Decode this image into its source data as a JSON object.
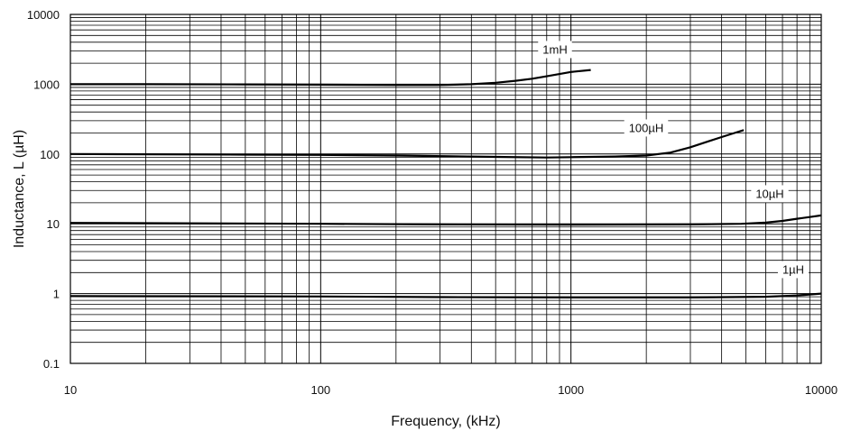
{
  "chart_data": {
    "type": "line",
    "xlabel": "Frequency, (kHz)",
    "ylabel": "Inductance, L (µH)",
    "xscale": "log",
    "yscale": "log",
    "xlim": [
      10,
      10000
    ],
    "ylim": [
      0.1,
      10000
    ],
    "grid": true,
    "x_ticks": [
      "10",
      "100",
      "1000",
      "10000"
    ],
    "y_ticks": [
      "0.1",
      "1",
      "10",
      "100",
      "1000",
      "10000"
    ],
    "series": [
      {
        "name": "1mH",
        "x": [
          10,
          20,
          50,
          100,
          200,
          300,
          400,
          500,
          600,
          700,
          800,
          900,
          1000,
          1200
        ],
        "y": [
          1000,
          1000,
          995,
          985,
          975,
          975,
          1000,
          1050,
          1120,
          1200,
          1300,
          1400,
          1500,
          1600
        ]
      },
      {
        "name": "100µH",
        "x": [
          10,
          50,
          100,
          200,
          500,
          800,
          1000,
          1500,
          2000,
          2500,
          3000,
          3500,
          4000,
          4500,
          4900
        ],
        "y": [
          100,
          98,
          97,
          95,
          91,
          89,
          90,
          92,
          95,
          105,
          125,
          150,
          175,
          200,
          220
        ]
      },
      {
        "name": "10µH",
        "x": [
          10,
          100,
          300,
          1000,
          3000,
          4800,
          6000,
          7000,
          8000,
          9000,
          10000
        ],
        "y": [
          10.3,
          10,
          9.8,
          9.7,
          9.8,
          10.0,
          10.4,
          11,
          11.8,
          12.5,
          13.2
        ]
      },
      {
        "name": "1µH",
        "x": [
          10,
          100,
          300,
          1000,
          3000,
          6000,
          8000,
          10000
        ],
        "y": [
          0.92,
          0.91,
          0.89,
          0.88,
          0.88,
          0.9,
          0.94,
          1.0
        ]
      }
    ]
  }
}
